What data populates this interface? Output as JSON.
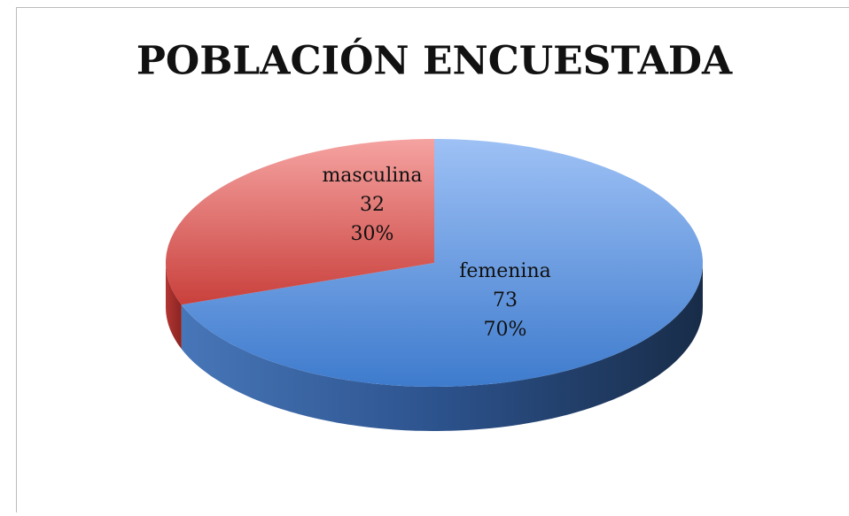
{
  "chart_data": {
    "type": "pie3d",
    "title": "POBLACIÓN ENCUESTADA",
    "categories": [
      "femenina",
      "masculina"
    ],
    "values": [
      73,
      32
    ],
    "percentage_labels": [
      "70%",
      "30%"
    ],
    "colors": [
      "#5b8fd8",
      "#e05f5c"
    ]
  }
}
